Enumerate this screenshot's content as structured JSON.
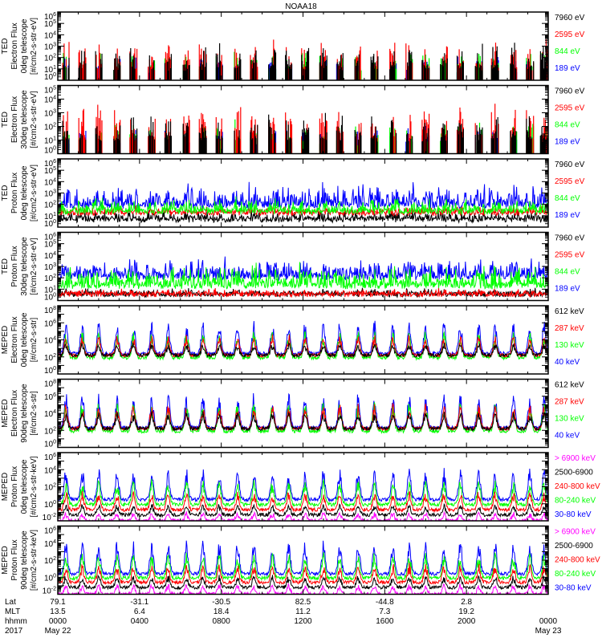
{
  "chart_data": {
    "type": "line",
    "title": "NOAA18",
    "x_range_hours": [
      0,
      24
    ],
    "pass_times_hr": [
      0.4,
      1.2,
      2.0,
      2.9,
      3.7,
      4.6,
      5.4,
      6.3,
      7.1,
      7.9,
      8.8,
      9.6,
      10.5,
      11.3,
      12.1,
      13.0,
      13.8,
      14.7,
      15.5,
      16.4,
      17.2,
      18.0,
      18.9,
      19.7,
      20.6,
      21.4,
      22.3,
      23.1,
      23.8
    ],
    "panels": [
      {
        "ylabel": [
          "TED",
          "Electron Flux",
          "0deg telescope",
          "[#/cm2-s-str-eV]"
        ],
        "ylog": [
          0,
          6
        ],
        "tick_exps": [
          0,
          1,
          2,
          3,
          4,
          5,
          6
        ],
        "mode": "bars",
        "series": [
          {
            "name": "189 eV",
            "color": "#0000ff",
            "base_log": 0.8,
            "peak_log": 2.2
          },
          {
            "name": "844 eV",
            "color": "#00ff00",
            "base_log": 0.8,
            "peak_log": 2.6
          },
          {
            "name": "2595 eV",
            "color": "#ff0000",
            "base_log": 1.0,
            "peak_log": 3.9
          },
          {
            "name": "7960 eV",
            "color": "#000000",
            "base_log": 1.0,
            "peak_log": 3.3
          }
        ]
      },
      {
        "ylabel": [
          "TED",
          "Electron Flux",
          "30deg telescope",
          "[#/cm2-s-str-eV]"
        ],
        "ylog": [
          0,
          5
        ],
        "tick_exps": [
          0,
          1,
          2,
          3,
          4,
          5
        ],
        "mode": "bars",
        "series": [
          {
            "name": "189 eV",
            "color": "#0000ff",
            "base_log": 0.8,
            "peak_log": 2.0
          },
          {
            "name": "844 eV",
            "color": "#00ff00",
            "base_log": 0.8,
            "peak_log": 2.4
          },
          {
            "name": "2595 eV",
            "color": "#ff0000",
            "base_log": 1.0,
            "peak_log": 3.6
          },
          {
            "name": "7960 eV",
            "color": "#000000",
            "base_log": 1.0,
            "peak_log": 3.0
          }
        ]
      },
      {
        "ylabel": [
          "TED",
          "Proton Flux",
          "0deg telescope",
          "[#/cm2-s-str-eV]"
        ],
        "ylog": [
          0,
          6
        ],
        "tick_exps": [
          0,
          1,
          2,
          3,
          4,
          5,
          6
        ],
        "mode": "noisy",
        "series": [
          {
            "name": "7960 eV",
            "color": "#000000",
            "base_log": 0.6,
            "peak_log": 1.5
          },
          {
            "name": "2595 eV",
            "color": "#ff0000",
            "base_log": 1.2,
            "peak_log": 1.8
          },
          {
            "name": "189 eV",
            "color": "#0000ff",
            "base_log": 1.8,
            "peak_log": 4.0
          },
          {
            "name": "844 eV",
            "color": "#00ff00",
            "base_log": 1.3,
            "peak_log": 2.6
          }
        ]
      },
      {
        "ylabel": [
          "TED",
          "Proton Flux",
          "30deg telescope",
          "[#/cm2-s-str-eV]"
        ],
        "ylog": [
          0,
          6
        ],
        "tick_exps": [
          0,
          1,
          2,
          3,
          4,
          5,
          6
        ],
        "mode": "noisy",
        "series": [
          {
            "name": "7960 eV",
            "color": "#000000",
            "base_log": 0.5,
            "peak_log": 1.0
          },
          {
            "name": "2595 eV",
            "color": "#ff0000",
            "base_log": 0.5,
            "peak_log": 1.0
          },
          {
            "name": "189 eV",
            "color": "#0000ff",
            "base_log": 2.0,
            "peak_log": 3.8
          },
          {
            "name": "844 eV",
            "color": "#00ff00",
            "base_log": 1.2,
            "peak_log": 3.3
          }
        ]
      },
      {
        "ylabel": [
          "MEPED",
          "Electron Flux",
          "0deg telescope",
          "[#/cm2-s-str]"
        ],
        "ylog": [
          0,
          8
        ],
        "tick_exps": [
          0,
          2,
          4,
          6,
          8
        ],
        "mode": "pass",
        "series": [
          {
            "name": "40 keV",
            "color": "#0000ff",
            "base_log": 2.4,
            "peak_log": 6.3
          },
          {
            "name": "130 keV",
            "color": "#00ff00",
            "base_log": 1.9,
            "peak_log": 5.0
          },
          {
            "name": "287 keV",
            "color": "#ff0000",
            "base_log": 2.2,
            "peak_log": 4.6
          },
          {
            "name": "612 keV",
            "color": "#000000",
            "base_log": 2.2,
            "peak_log": 3.6
          }
        ]
      },
      {
        "ylabel": [
          "MEPED",
          "Electron Flux",
          "90deg telescope",
          "[#/cm2-s-str]"
        ],
        "ylog": [
          0,
          8
        ],
        "tick_exps": [
          0,
          2,
          4,
          6,
          8
        ],
        "mode": "pass",
        "series": [
          {
            "name": "40 keV",
            "color": "#0000ff",
            "base_log": 2.3,
            "peak_log": 6.4
          },
          {
            "name": "130 keV",
            "color": "#00ff00",
            "base_log": 1.9,
            "peak_log": 5.3
          },
          {
            "name": "287 keV",
            "color": "#ff0000",
            "base_log": 2.2,
            "peak_log": 5.0
          },
          {
            "name": "612 keV",
            "color": "#000000",
            "base_log": 2.2,
            "peak_log": 4.2
          }
        ]
      },
      {
        "ylabel": [
          "MEPED",
          "Proton Flux",
          "0deg telescope",
          "[#/cm2-s-str-keV]"
        ],
        "ylog": [
          -2,
          6
        ],
        "tick_exps": [
          -2,
          0,
          2,
          4,
          6
        ],
        "mode": "pass",
        "series": [
          {
            "name": "30-80 keV",
            "color": "#0000ff",
            "base_log": 0.5,
            "peak_log": 4.2
          },
          {
            "name": "80-240 keV",
            "color": "#00ff00",
            "base_log": -0.1,
            "peak_log": 2.8
          },
          {
            "name": "240-800 keV",
            "color": "#ff0000",
            "base_log": -0.7,
            "peak_log": 1.4
          },
          {
            "name": "2500-6900",
            "color": "#000000",
            "base_log": -1.3,
            "peak_log": 0.0
          },
          {
            "name": "> 6900 keV",
            "color": "#ff00ff",
            "base_log": -2.0,
            "peak_log": -1.0
          }
        ]
      },
      {
        "ylabel": [
          "MEPED",
          "Proton Flux",
          "90deg telescope",
          "[#/cm2-s-str-keV]"
        ],
        "ylog": [
          -2,
          6
        ],
        "tick_exps": [
          -2,
          0,
          2,
          4,
          6
        ],
        "mode": "pass",
        "series": [
          {
            "name": "30-80 keV",
            "color": "#0000ff",
            "base_log": 0.4,
            "peak_log": 4.3
          },
          {
            "name": "80-240 keV",
            "color": "#00ff00",
            "base_log": -0.1,
            "peak_log": 2.9
          },
          {
            "name": "240-800 keV",
            "color": "#ff0000",
            "base_log": -0.6,
            "peak_log": 1.5
          },
          {
            "name": "2500-6900",
            "color": "#000000",
            "base_log": -1.2,
            "peak_log": 0.2
          },
          {
            "name": "> 6900 keV",
            "color": "#ff00ff",
            "base_log": -2.0,
            "peak_log": -0.8
          }
        ]
      }
    ],
    "legends": [
      [
        {
          "label": "7960 eV",
          "color": "#000000"
        },
        {
          "label": "2595 eV",
          "color": "#ff0000"
        },
        {
          "label": "844 eV",
          "color": "#00ff00"
        },
        {
          "label": "189 eV",
          "color": "#0000ff"
        }
      ],
      [
        {
          "label": "7960 eV",
          "color": "#000000"
        },
        {
          "label": "2595 eV",
          "color": "#ff0000"
        },
        {
          "label": "844 eV",
          "color": "#00ff00"
        },
        {
          "label": "189 eV",
          "color": "#0000ff"
        }
      ],
      [
        {
          "label": "7960 eV",
          "color": "#000000"
        },
        {
          "label": "2595 eV",
          "color": "#ff0000"
        },
        {
          "label": "844 eV",
          "color": "#00ff00"
        },
        {
          "label": "189 eV",
          "color": "#0000ff"
        }
      ],
      [
        {
          "label": "7960 eV",
          "color": "#000000"
        },
        {
          "label": "2595 eV",
          "color": "#ff0000"
        },
        {
          "label": "844 eV",
          "color": "#00ff00"
        },
        {
          "label": "189 eV",
          "color": "#0000ff"
        }
      ],
      [
        {
          "label": "612 keV",
          "color": "#000000"
        },
        {
          "label": "287 keV",
          "color": "#ff0000"
        },
        {
          "label": "130 keV",
          "color": "#00ff00"
        },
        {
          "label": "40 keV",
          "color": "#0000ff"
        }
      ],
      [
        {
          "label": "612 keV",
          "color": "#000000"
        },
        {
          "label": "287 keV",
          "color": "#ff0000"
        },
        {
          "label": "130 keV",
          "color": "#00ff00"
        },
        {
          "label": "40 keV",
          "color": "#0000ff"
        }
      ],
      [
        {
          "label": "> 6900 keV",
          "color": "#ff00ff"
        },
        {
          "label": "2500-6900",
          "color": "#000000"
        },
        {
          "label": "240-800 keV",
          "color": "#ff0000"
        },
        {
          "label": "80-240 keV",
          "color": "#00ff00"
        },
        {
          "label": "30-80 keV",
          "color": "#0000ff"
        }
      ],
      [
        {
          "label": "> 6900 keV",
          "color": "#ff00ff"
        },
        {
          "label": "2500-6900",
          "color": "#000000"
        },
        {
          "label": "240-800 keV",
          "color": "#ff0000"
        },
        {
          "label": "80-240 keV",
          "color": "#00ff00"
        },
        {
          "label": "30-80 keV",
          "color": "#0000ff"
        }
      ]
    ],
    "x_axis": {
      "row_labels": [
        "Lat",
        "MLT",
        "hhmm",
        "2017"
      ],
      "tick_hours": [
        0,
        4,
        8,
        12,
        16,
        20,
        24
      ],
      "lat": [
        "79.1",
        "-31.1",
        "-30.5",
        "82.5",
        "-44.8",
        "2.8",
        ""
      ],
      "mlt": [
        "13.5",
        "6.4",
        "18.4",
        "11.2",
        "7.3",
        "19.2",
        ""
      ],
      "hhmm": [
        "0000",
        "0400",
        "0800",
        "1200",
        "1600",
        "2000",
        "0000"
      ],
      "date": [
        "May 22",
        "",
        "",
        "",
        "",
        "",
        "May 23"
      ]
    }
  }
}
